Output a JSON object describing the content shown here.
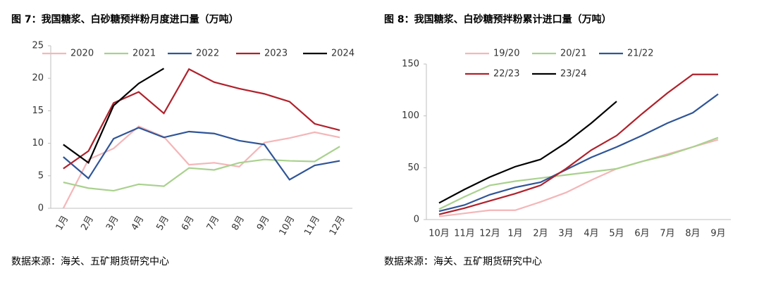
{
  "chart_data": [
    {
      "type": "line",
      "title": "图 7：我国糖浆、白砂糖预拌粉月度进口量（万吨）",
      "source": "数据来源：海关、五矿期货研究中心",
      "categories": [
        "1月",
        "2月",
        "3月",
        "4月",
        "5月",
        "6月",
        "7月",
        "8月",
        "9月",
        "10月",
        "11月",
        "12月"
      ],
      "ylim": [
        0,
        25
      ],
      "yticks": [
        0,
        5,
        10,
        15,
        20,
        25
      ],
      "legend": "top",
      "series": [
        {
          "name": "2020",
          "color": "#f4b6b8",
          "values": [
            0,
            7.5,
            9.2,
            12.6,
            11.0,
            6.7,
            7.0,
            6.4,
            10.1,
            10.8,
            11.7,
            10.9
          ]
        },
        {
          "name": "2021",
          "color": "#a9d18e",
          "values": [
            4.0,
            3.1,
            2.7,
            3.7,
            3.4,
            6.2,
            5.9,
            7.0,
            7.5,
            7.3,
            7.2,
            9.5
          ]
        },
        {
          "name": "2022",
          "color": "#2f5597",
          "values": [
            7.9,
            4.6,
            10.7,
            12.4,
            10.9,
            11.8,
            11.5,
            10.4,
            9.8,
            4.4,
            6.6,
            7.3
          ]
        },
        {
          "name": "2023",
          "color": "#b0212b",
          "values": [
            6.1,
            8.8,
            16.2,
            17.9,
            14.6,
            21.4,
            19.4,
            18.4,
            17.6,
            16.4,
            13.0,
            12.0
          ]
        },
        {
          "name": "2024",
          "color": "#000000",
          "values": [
            9.8,
            7.0,
            15.8,
            19.2,
            21.5,
            null,
            null,
            null,
            null,
            null,
            null,
            null
          ]
        }
      ]
    },
    {
      "type": "line",
      "title": "图 8：我国糖浆、白砂糖预拌粉累计进口量（万吨）",
      "source": "数据来源：海关、五矿期货研究中心",
      "categories": [
        "10月",
        "11月",
        "12月",
        "1月",
        "2月",
        "3月",
        "4月",
        "5月",
        "6月",
        "7月",
        "8月",
        "9月"
      ],
      "ylim": [
        0,
        150
      ],
      "yticks": [
        0,
        50,
        100,
        150
      ],
      "legend": "top",
      "series": [
        {
          "name": "19/20",
          "color": "#f4b6b8",
          "values": [
            3,
            6,
            9,
            9,
            17,
            26,
            38,
            49,
            56,
            63,
            70,
            77
          ]
        },
        {
          "name": "20/21",
          "color": "#a9d18e",
          "values": [
            10,
            22,
            33,
            37,
            40,
            43,
            46,
            49,
            56,
            62,
            70,
            79
          ]
        },
        {
          "name": "21/22",
          "color": "#2f5597",
          "values": [
            8,
            14,
            24,
            31,
            36,
            48,
            60,
            70,
            81,
            93,
            103,
            121
          ]
        },
        {
          "name": "22/23",
          "color": "#b0212b",
          "values": [
            5,
            11,
            18,
            25,
            33,
            49,
            67,
            81,
            102,
            122,
            140,
            140
          ]
        },
        {
          "name": "23/24",
          "color": "#000000",
          "values": [
            16,
            29,
            41,
            51,
            58,
            74,
            93,
            114,
            null,
            null,
            null,
            null
          ]
        }
      ]
    }
  ]
}
